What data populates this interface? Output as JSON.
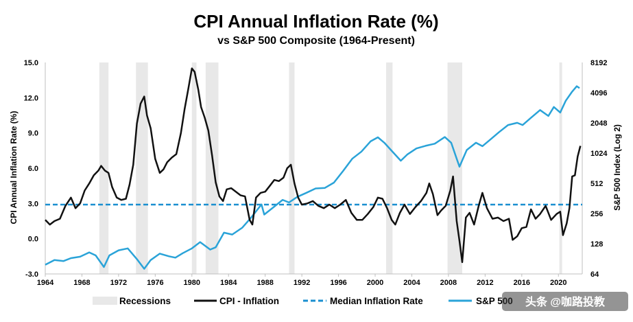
{
  "chart_data": {
    "type": "line",
    "title": "CPI Annual Inflation Rate (%)",
    "subtitle": "vs S&P 500 Composite (1964-Present)",
    "ylabel": "CPI Annual Inflation Rate (%)",
    "y2label": "S&P 500 Index (Log 2)",
    "xlim": [
      1964,
      2022.6
    ],
    "ylim": [
      -3.0,
      15.0
    ],
    "y2lim_log2": [
      64,
      8192
    ],
    "x_ticks": [
      "1964",
      "1968",
      "1972",
      "1976",
      "1980",
      "1984",
      "1988",
      "1992",
      "1996",
      "2000",
      "2004",
      "2008",
      "2012",
      "2016",
      "2020"
    ],
    "y_ticks": [
      "15.0",
      "12.0",
      "9.0",
      "6.0",
      "3.0",
      "0.0",
      "-3.0"
    ],
    "y2_ticks": [
      "8192",
      "4096",
      "2048",
      "1024",
      "512",
      "256",
      "128",
      "64"
    ],
    "colors": {
      "cpi": "#111111",
      "median": "#1a8fd0",
      "sp500": "#2aa3d8",
      "recession": "#e8e8e8"
    },
    "legend": {
      "recessions": "Recessions",
      "cpi": "CPI - Inflation",
      "median": "Median Inflation Rate",
      "sp500": "S&P 500"
    },
    "recessions": [
      [
        1969.9,
        1970.9
      ],
      [
        1973.9,
        1975.2
      ],
      [
        1980.0,
        1980.5
      ],
      [
        1981.5,
        1982.9
      ],
      [
        1990.6,
        1991.2
      ],
      [
        2001.2,
        2001.9
      ],
      [
        2007.9,
        2009.5
      ],
      [
        2020.1,
        2020.4
      ]
    ],
    "median_inflation": 2.9,
    "series": [
      {
        "name": "CPI - Inflation",
        "x": [
          1964.0,
          1964.5,
          1965.0,
          1965.6,
          1966.2,
          1966.8,
          1967.3,
          1967.8,
          1968.3,
          1968.8,
          1969.3,
          1969.8,
          1970.1,
          1970.5,
          1970.9,
          1971.3,
          1971.8,
          1972.3,
          1972.8,
          1973.2,
          1973.6,
          1974.0,
          1974.4,
          1974.8,
          1975.1,
          1975.5,
          1976.0,
          1976.5,
          1976.9,
          1977.3,
          1977.8,
          1978.3,
          1978.8,
          1979.2,
          1979.6,
          1980.0,
          1980.3,
          1980.7,
          1981.0,
          1981.4,
          1981.8,
          1982.2,
          1982.6,
          1983.0,
          1983.4,
          1983.8,
          1984.3,
          1984.8,
          1985.3,
          1985.8,
          1986.3,
          1986.6,
          1987.0,
          1987.5,
          1988.0,
          1988.5,
          1989.0,
          1989.5,
          1990.0,
          1990.4,
          1990.8,
          1991.2,
          1991.6,
          1992.0,
          1992.6,
          1993.2,
          1993.8,
          1994.4,
          1995.0,
          1995.6,
          1996.2,
          1996.8,
          1997.4,
          1998.0,
          1998.6,
          1999.2,
          1999.8,
          2000.3,
          2000.8,
          2001.3,
          2001.8,
          2002.2,
          2002.7,
          2003.2,
          2003.8,
          2004.4,
          2005.0,
          2005.6,
          2005.9,
          2006.3,
          2006.8,
          2007.2,
          2007.7,
          2008.2,
          2008.5,
          2008.9,
          2009.2,
          2009.5,
          2009.9,
          2010.3,
          2010.8,
          2011.3,
          2011.7,
          2012.2,
          2012.8,
          2013.4,
          2014.0,
          2014.6,
          2015.0,
          2015.5,
          2016.0,
          2016.5,
          2017.0,
          2017.5,
          2018.0,
          2018.6,
          2019.2,
          2019.8,
          2020.2,
          2020.5,
          2020.9,
          2021.2,
          2021.5,
          2021.8,
          2022.1,
          2022.4
        ],
        "values": [
          1.6,
          1.2,
          1.5,
          1.7,
          2.8,
          3.5,
          2.6,
          3.0,
          4.1,
          4.7,
          5.4,
          5.8,
          6.2,
          5.8,
          5.6,
          4.4,
          3.5,
          3.3,
          3.4,
          4.6,
          6.3,
          9.8,
          11.5,
          12.1,
          10.5,
          9.4,
          6.8,
          5.6,
          5.9,
          6.5,
          6.9,
          7.2,
          9.0,
          11.0,
          12.7,
          14.5,
          14.2,
          12.7,
          11.2,
          10.3,
          9.2,
          7.1,
          4.8,
          3.6,
          3.2,
          4.2,
          4.3,
          4.0,
          3.7,
          3.6,
          1.6,
          1.2,
          3.5,
          3.9,
          4.0,
          4.5,
          5.0,
          4.9,
          5.2,
          6.0,
          6.3,
          4.7,
          3.5,
          2.9,
          3.0,
          3.2,
          2.8,
          2.6,
          2.9,
          2.6,
          2.9,
          3.3,
          2.2,
          1.6,
          1.6,
          2.1,
          2.7,
          3.5,
          3.4,
          2.6,
          1.6,
          1.2,
          2.2,
          2.9,
          2.1,
          2.7,
          3.2,
          3.9,
          4.7,
          3.8,
          2.0,
          2.4,
          2.8,
          4.1,
          5.3,
          1.5,
          -0.2,
          -2.0,
          1.8,
          2.2,
          1.2,
          2.8,
          3.9,
          2.6,
          1.7,
          1.8,
          1.5,
          1.7,
          -0.1,
          0.2,
          0.9,
          1.0,
          2.5,
          1.7,
          2.1,
          2.8,
          1.6,
          2.1,
          2.3,
          0.3,
          1.3,
          2.6,
          5.3,
          5.4,
          7.0,
          7.9
        ]
      },
      {
        "name": "S&P 500",
        "x": [
          1964.0,
          1965.0,
          1966.0,
          1966.8,
          1967.8,
          1968.8,
          1969.5,
          1970.4,
          1971.0,
          1972.0,
          1973.0,
          1974.0,
          1974.8,
          1975.5,
          1976.5,
          1977.5,
          1978.2,
          1979.0,
          1980.0,
          1980.9,
          1982.0,
          1982.6,
          1983.5,
          1984.4,
          1985.5,
          1986.5,
          1987.6,
          1987.9,
          1989.0,
          1989.9,
          1990.6,
          1991.5,
          1992.5,
          1993.5,
          1994.5,
          1995.5,
          1996.5,
          1997.5,
          1998.5,
          1999.5,
          2000.3,
          2001.0,
          2001.8,
          2002.8,
          2003.5,
          2004.5,
          2005.5,
          2006.5,
          2007.6,
          2008.3,
          2008.9,
          2009.2,
          2010.0,
          2011.0,
          2011.7,
          2012.5,
          2013.5,
          2014.5,
          2015.5,
          2016.1,
          2017.0,
          2018.0,
          2018.9,
          2019.5,
          2020.2,
          2020.8,
          2021.5,
          2022.0,
          2022.3
        ],
        "values": [
          79,
          88,
          86,
          92,
          95,
          105,
          98,
          75,
          98,
          110,
          115,
          90,
          72,
          88,
          102,
          96,
          93,
          103,
          115,
          133,
          112,
          118,
          165,
          158,
          185,
          235,
          315,
          250,
          300,
          350,
          330,
          375,
          412,
          455,
          460,
          520,
          680,
          900,
          1060,
          1340,
          1470,
          1300,
          1080,
          860,
          990,
          1140,
          1210,
          1270,
          1480,
          1300,
          900,
          750,
          1100,
          1300,
          1200,
          1380,
          1650,
          1950,
          2050,
          1950,
          2300,
          2750,
          2400,
          2950,
          2600,
          3400,
          4200,
          4750,
          4550
        ]
      }
    ]
  },
  "watermark": "头条 @咖路投教"
}
